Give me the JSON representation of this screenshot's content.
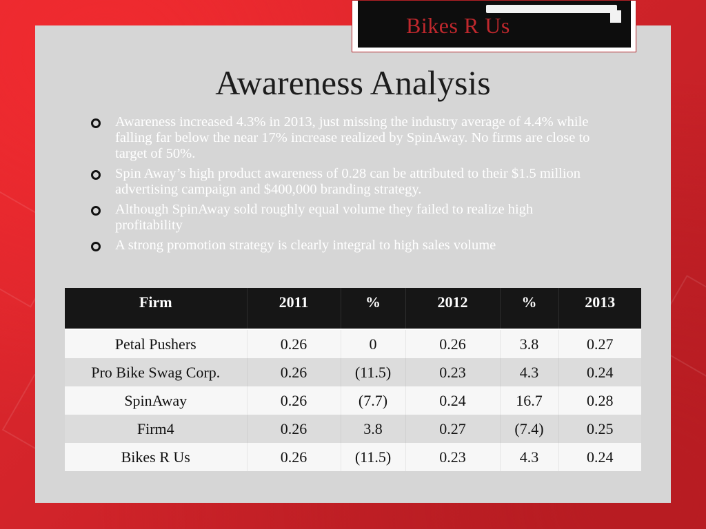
{
  "logo": {
    "text": "Bikes R Us"
  },
  "slide": {
    "title": "Awareness Analysis"
  },
  "bullets": [
    "Awareness increased 4.3% in 2013, just missing the industry average of 4.4% while falling far below the near 17% increase realized by SpinAway. No firms are close to target of 50%.",
    "Spin Away’s high product awareness of 0.28 can be attributed to their $1.5 million advertising campaign and $400,000 branding strategy.",
    "Although SpinAway sold roughly equal volume they failed to realize high profitability",
    "A strong promotion strategy is clearly integral to high sales volume"
  ],
  "table": {
    "headers": [
      "Firm",
      "2011",
      "%",
      "2012",
      "%",
      "2013"
    ],
    "rows": [
      [
        "Petal Pushers",
        "0.26",
        "0",
        "0.26",
        "3.8",
        "0.27"
      ],
      [
        "Pro Bike Swag Corp.",
        "0.26",
        "(11.5)",
        "0.23",
        "4.3",
        "0.24"
      ],
      [
        "SpinAway",
        "0.26",
        "(7.7)",
        "0.24",
        "16.7",
        "0.28"
      ],
      [
        "Firm4",
        "0.26",
        "3.8",
        "0.27",
        "(7.4)",
        "0.25"
      ],
      [
        "Bikes R Us",
        "0.26",
        "(11.5)",
        "0.23",
        "4.3",
        "0.24"
      ]
    ]
  }
}
